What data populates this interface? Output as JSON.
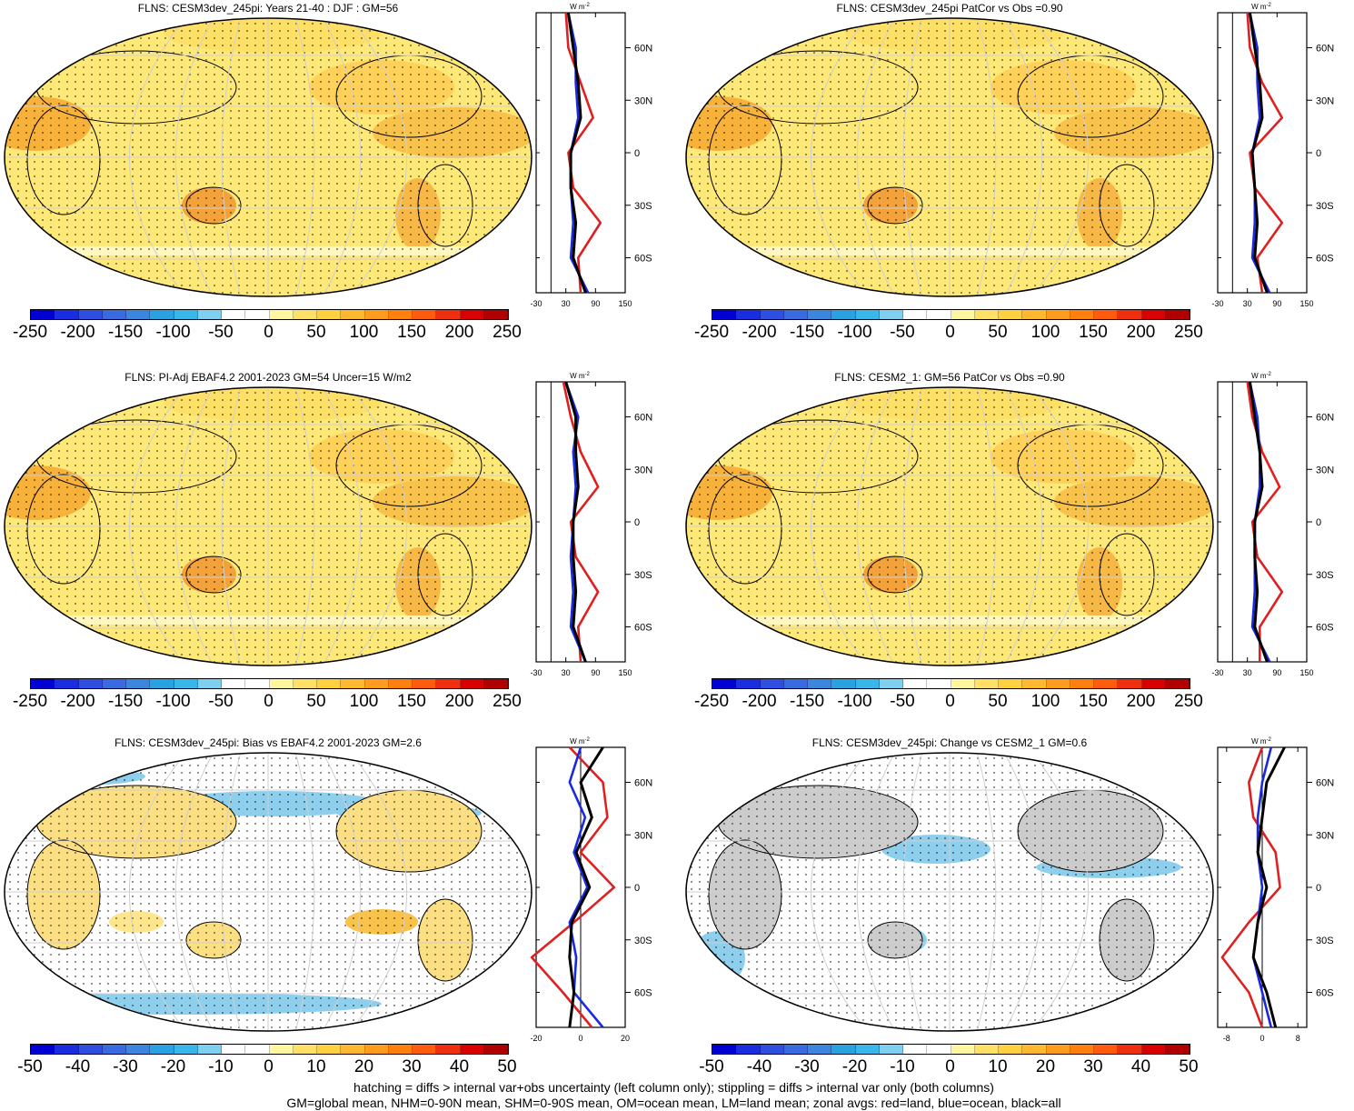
{
  "panels": [
    {
      "title": "FLNS: CESM3dev_245pi: Years 21-40 : DJF : GM=56",
      "scale": "full",
      "profile": "mean",
      "zonal_ticks": [
        "-30",
        "30",
        "90",
        "150"
      ]
    },
    {
      "title": "FLNS: CESM3dev_245pi PatCor vs Obs =0.90",
      "scale": "full",
      "profile": "mean",
      "zonal_ticks": [
        "-30",
        "30",
        "90",
        "150"
      ]
    },
    {
      "title": "FLNS: PI-Adj EBAF4.2 2001-2023 GM=54 Uncer=15 W/m2",
      "scale": "full",
      "profile": "mean",
      "zonal_ticks": [
        "-30",
        "30",
        "90",
        "150"
      ]
    },
    {
      "title": "FLNS: CESM2_1: GM=56 PatCor vs Obs =0.90",
      "scale": "full",
      "profile": "mean",
      "zonal_ticks": [
        "-30",
        "30",
        "90",
        "150"
      ]
    },
    {
      "title": "FLNS: CESM3dev_245pi: Bias vs EBAF4.2 2001-2023 GM=2.6",
      "scale": "diff",
      "profile": "bias",
      "zonal_ticks": [
        "-20",
        "0",
        "20"
      ]
    },
    {
      "title": "FLNS: CESM3dev_245pi: Change vs CESM2_1 GM=0.6",
      "scale": "diff",
      "profile": "change",
      "zonal_ticks": [
        "-8",
        "0",
        "8"
      ]
    }
  ],
  "colorbars": {
    "full_labels": [
      "-250",
      "-200",
      "-150",
      "-100",
      "-50",
      "0",
      "50",
      "100",
      "150",
      "200",
      "250"
    ],
    "diff_labels": [
      "-50",
      "-40",
      "-30",
      "-20",
      "-10",
      "0",
      "10",
      "20",
      "30",
      "40",
      "50"
    ],
    "colors": [
      "#0000d0",
      "#1a2ee0",
      "#2f4fe0",
      "#3a6ae0",
      "#3d86e0",
      "#2aa2e0",
      "#3ab7ea",
      "#7fd0f0",
      "#ffffff",
      "#ffffff",
      "#fff6a0",
      "#ffe066",
      "#ffd040",
      "#ffb830",
      "#ff9c20",
      "#ff8010",
      "#ff5c10",
      "#ee3010",
      "#d80000",
      "#b00000"
    ]
  },
  "zonal": {
    "unit_label": "W m",
    "unit_sup": "-2",
    "lat_labels": [
      "60N",
      "30N",
      "0",
      "30S",
      "60S"
    ],
    "line_colors": {
      "land": "#e02020",
      "ocean": "#1a2ae0",
      "all": "#000000"
    }
  },
  "chart_data": {
    "type": "line",
    "lat": [
      80,
      60,
      40,
      20,
      0,
      -20,
      -40,
      -60,
      -80
    ],
    "units": "W m-2",
    "panels": [
      {
        "series": [
          {
            "name": "land",
            "values": [
              30,
              35,
              60,
              85,
              35,
              45,
              100,
              55,
              60
            ]
          },
          {
            "name": "ocean",
            "values": [
              35,
              50,
              50,
              55,
              40,
              40,
              45,
              40,
              75
            ]
          },
          {
            "name": "all",
            "values": [
              35,
              45,
              55,
              60,
              40,
              40,
              50,
              45,
              70
            ]
          }
        ]
      },
      {
        "series": [
          {
            "name": "land",
            "values": [
              30,
              35,
              60,
              100,
              35,
              45,
              100,
              50,
              60
            ]
          },
          {
            "name": "ocean",
            "values": [
              35,
              50,
              50,
              55,
              40,
              45,
              45,
              40,
              75
            ]
          },
          {
            "name": "all",
            "values": [
              35,
              45,
              55,
              60,
              40,
              45,
              50,
              45,
              70
            ]
          }
        ]
      },
      {
        "series": [
          {
            "name": "land",
            "values": [
              25,
              40,
              60,
              95,
              40,
              50,
              95,
              55,
              60
            ]
          },
          {
            "name": "ocean",
            "values": [
              30,
              55,
              45,
              50,
              45,
              40,
              45,
              40,
              70
            ]
          },
          {
            "name": "all",
            "values": [
              30,
              50,
              50,
              55,
              45,
              45,
              50,
              45,
              70
            ]
          }
        ]
      },
      {
        "series": [
          {
            "name": "land",
            "values": [
              30,
              40,
              60,
              95,
              40,
              50,
              100,
              55,
              55
            ]
          },
          {
            "name": "ocean",
            "values": [
              35,
              50,
              55,
              55,
              45,
              45,
              45,
              40,
              75
            ]
          },
          {
            "name": "all",
            "values": [
              35,
              45,
              55,
              60,
              45,
              45,
              50,
              45,
              70
            ]
          }
        ]
      },
      {
        "series": [
          {
            "name": "land",
            "values": [
              -5,
              10,
              12,
              0,
              15,
              -3,
              -22,
              -8,
              5
            ]
          },
          {
            "name": "ocean",
            "values": [
              0,
              -5,
              2,
              -3,
              3,
              -5,
              -2,
              -3,
              10
            ]
          },
          {
            "name": "all",
            "values": [
              10,
              0,
              5,
              -2,
              4,
              -4,
              -5,
              -3,
              -5
            ]
          }
        ]
      },
      {
        "series": [
          {
            "name": "land",
            "values": [
              0,
              -3,
              -2,
              3,
              4,
              -3,
              -9,
              -3,
              0
            ]
          },
          {
            "name": "ocean",
            "values": [
              2,
              0,
              -1,
              -1,
              0,
              -1,
              -2,
              0,
              2
            ]
          },
          {
            "name": "all",
            "values": [
              5,
              1,
              0,
              -1,
              1,
              -1,
              -2,
              1,
              3
            ]
          }
        ]
      }
    ]
  },
  "footer": {
    "line1": "hatching = diffs > internal var+obs uncertainty (left column only); stippling = diffs > internal var only (both columns)",
    "line2": "GM=global mean, NHM=0-90N mean, SHM=0-90S mean, OM=ocean mean, LM=land mean; zonal avgs: red=land, blue=ocean, black=all"
  }
}
